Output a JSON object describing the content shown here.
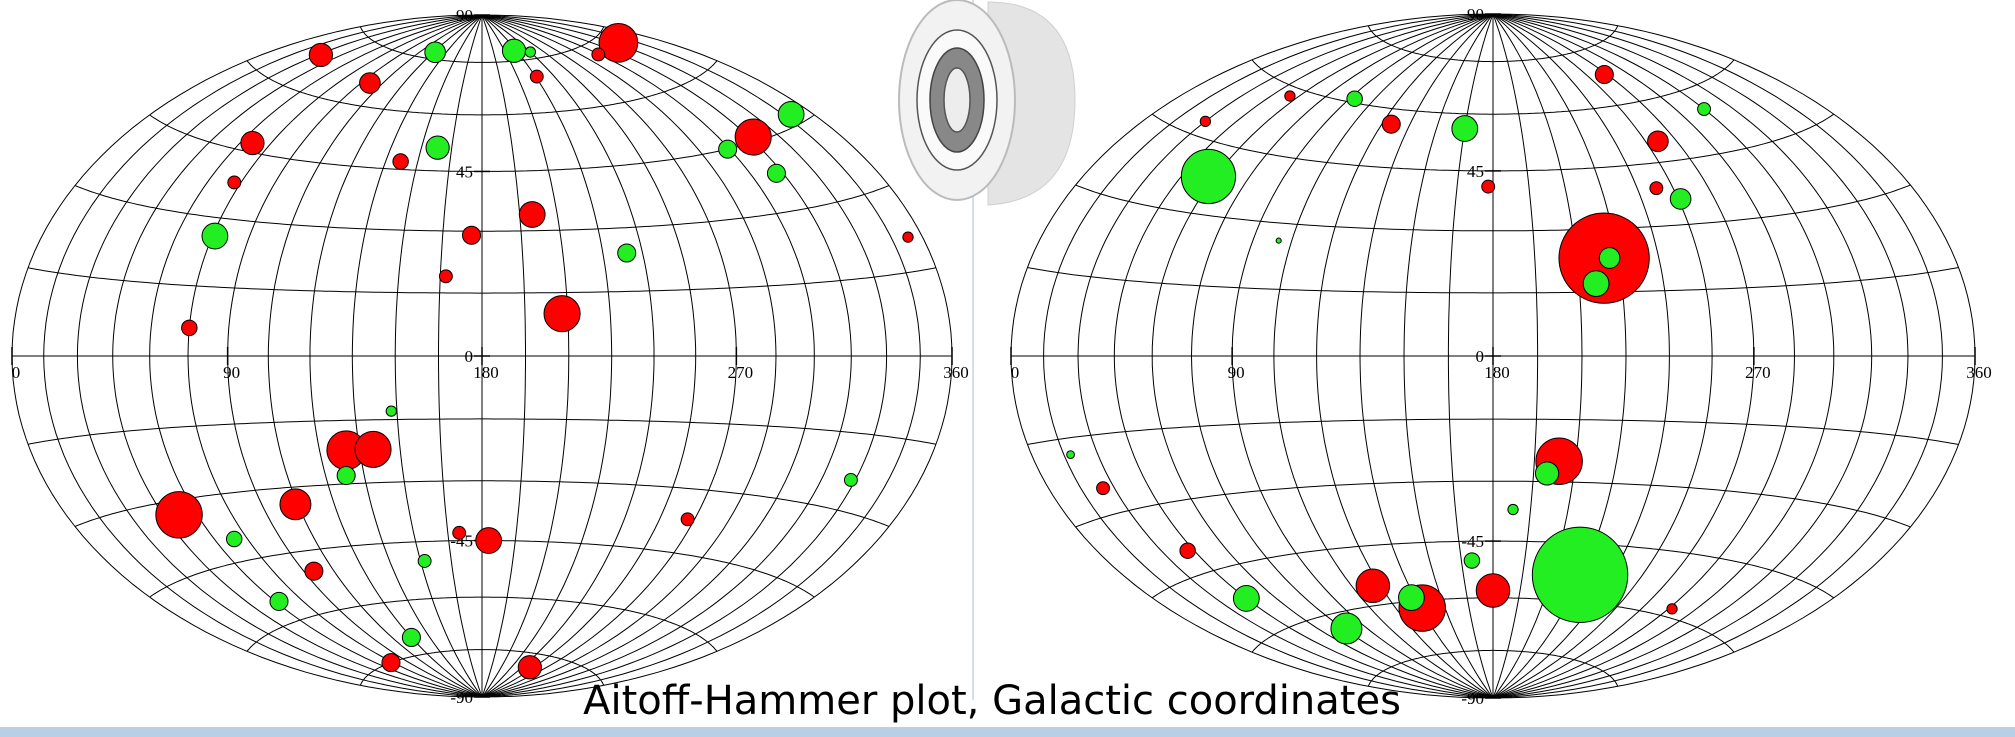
{
  "caption": "Aitoff-Hammer plot, Galactic coordinates",
  "chart_data": [
    {
      "type": "scatter",
      "projection": "hammer",
      "grid": true,
      "xlim": [
        0,
        360
      ],
      "ylim": [
        -90,
        90
      ],
      "xticks": [
        0,
        90,
        180,
        270,
        360
      ],
      "yticks": [
        90,
        45,
        0,
        -45,
        -90
      ],
      "series": [
        {
          "color": "#ff0000",
          "x": [
            333,
            32,
            299,
            96,
            226,
            317,
            66,
            142,
            200,
            176,
            208,
            75,
            167,
            72,
            353,
            130,
            140,
            52,
            104,
            183,
            95,
            73,
            250,
            170,
            267
          ],
          "values": [
            72,
            68,
            72,
            66,
            70,
            46,
            47,
            47,
            34,
            29,
            10,
            6,
            19,
            38,
            21,
            -22,
            -22,
            -33,
            -34,
            -45,
            -50,
            -75,
            -79,
            -43,
            -37
          ],
          "sizes": [
            15,
            9,
            5,
            8,
            5,
            14,
            9,
            6,
            10,
            7,
            14,
            6,
            5,
            5,
            4,
            15,
            14,
            18,
            12,
            10,
            7,
            7,
            9,
            5,
            5
          ]
        },
        {
          "color": "#22ee22",
          "x": [
            122,
            222,
            240,
            349,
            299,
            312,
            158,
            76,
            234,
            128,
            69,
            62,
            120,
            328,
            152,
            148
          ],
          "values": [
            77,
            78,
            77,
            47,
            45,
            38,
            51,
            26,
            24,
            -28,
            -40,
            -55,
            -70,
            -24,
            -50,
            -13
          ],
          "sizes": [
            8,
            9,
            4,
            10,
            7,
            7,
            9,
            10,
            7,
            7,
            6,
            7,
            7,
            5,
            5,
            4
          ]
        }
      ]
    },
    {
      "type": "scatter",
      "projection": "hammer",
      "grid": true,
      "xlim": [
        0,
        360
      ],
      "ylim": [
        -90,
        90
      ],
      "xticks": [
        0,
        90,
        180,
        270,
        360
      ],
      "yticks": [
        90,
        45,
        0,
        -45,
        -90
      ],
      "series": [
        {
          "color": "#ff0000",
          "x": [
            220,
            204,
            125,
            261,
            268,
            55,
            30,
            178,
            116,
            136,
            180,
            42,
            25,
            287,
            248
          ],
          "values": [
            23,
            -25,
            56,
            50,
            68,
            58,
            48,
            41,
            -55,
            -62,
            -58,
            -40,
            -25,
            -58,
            39
          ],
          "sizes": [
            35,
            18,
            7,
            8,
            7,
            4,
            4,
            5,
            13,
            18,
            13,
            6,
            5,
            4,
            5
          ]
        },
        {
          "color": "#22ee22",
          "x": [
            57,
            216,
            222,
            200,
            224,
            165,
            256,
            300,
            93,
            133,
            77,
            45,
            170,
            188,
            100,
            18
          ],
          "values": [
            38,
            17,
            23,
            -28,
            -53,
            56,
            36,
            55,
            61,
            -59,
            -64,
            -52,
            -50,
            -37,
            26,
            -18
          ],
          "sizes": [
            21,
            10,
            8,
            9,
            37,
            10,
            8,
            5,
            6,
            10,
            12,
            10,
            6,
            4,
            2,
            3
          ]
        }
      ]
    }
  ]
}
